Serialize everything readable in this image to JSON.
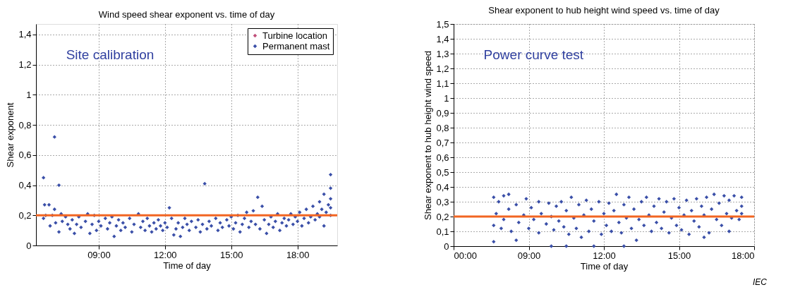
{
  "chart_data": [
    {
      "type": "scatter",
      "title": "Wind speed shear exponent vs. time of day",
      "xlabel": "Time of day",
      "ylabel": "Shear exponent",
      "xlim": [
        6.16,
        19.8
      ],
      "xticks": [
        {
          "value": 9,
          "label": "09:00"
        },
        {
          "value": 12,
          "label": "12:00"
        },
        {
          "value": 15,
          "label": "15:00"
        },
        {
          "value": 18,
          "label": "18:00"
        }
      ],
      "ylim": [
        0,
        1.47
      ],
      "yticks": [
        0,
        {
          "value": 0.2,
          "label": "0,2"
        },
        {
          "value": 0.4,
          "label": "0,4"
        },
        {
          "value": 0.6,
          "label": "0,6"
        },
        {
          "value": 0.8,
          "label": "0,8"
        },
        1,
        {
          "value": 1.2,
          "label": "1,2"
        },
        {
          "value": 1.4,
          "label": "1,4"
        }
      ],
      "grid": true,
      "legend": "top right",
      "marker": "diamond",
      "annotations": [
        "Site calibration"
      ],
      "ref_lines": [
        {
          "axis": "y",
          "value": 0.2,
          "label": null,
          "color": "#f26522"
        }
      ],
      "series": [
        {
          "name": "Turbine location",
          "color": "#c0507a"
        },
        {
          "name": "Permanent mast",
          "color": "#3a4fa8",
          "x": [
            6.5,
            6.5,
            6.55,
            6.6,
            6.75,
            6.8,
            6.9,
            7.0,
            7.0,
            7.05,
            7.2,
            7.2,
            7.3,
            7.35,
            7.5,
            7.6,
            7.7,
            7.8,
            7.9,
            8.0,
            8.1,
            8.2,
            8.4,
            8.5,
            8.6,
            8.7,
            8.8,
            8.9,
            9.0,
            9.1,
            9.3,
            9.4,
            9.5,
            9.6,
            9.7,
            9.8,
            9.9,
            10.0,
            10.1,
            10.2,
            10.4,
            10.5,
            10.6,
            10.8,
            10.9,
            11.0,
            11.1,
            11.2,
            11.3,
            11.4,
            11.5,
            11.6,
            11.7,
            11.8,
            11.9,
            12.0,
            12.1,
            12.2,
            12.3,
            12.4,
            12.5,
            12.6,
            12.7,
            12.8,
            12.9,
            13.0,
            13.1,
            13.2,
            13.4,
            13.5,
            13.6,
            13.7,
            13.8,
            13.9,
            14.0,
            14.1,
            14.3,
            14.4,
            14.5,
            14.6,
            14.8,
            14.9,
            15.0,
            15.1,
            15.2,
            15.3,
            15.4,
            15.5,
            15.6,
            15.7,
            15.8,
            15.9,
            16.0,
            16.1,
            16.2,
            16.3,
            16.4,
            16.5,
            16.6,
            16.7,
            16.8,
            16.9,
            17.0,
            17.1,
            17.2,
            17.3,
            17.4,
            17.5,
            17.6,
            17.7,
            17.8,
            17.9,
            18.0,
            18.1,
            18.2,
            18.3,
            18.4,
            18.5,
            18.6,
            18.7,
            18.8,
            18.9,
            19.0,
            19.0,
            19.1,
            19.2,
            19.2,
            19.3,
            19.4,
            19.5,
            19.5,
            19.5,
            19.5,
            19.5
          ],
          "values": [
            0.45,
            0.18,
            0.27,
            0.2,
            0.27,
            0.13,
            0.2,
            0.72,
            0.24,
            0.15,
            0.4,
            0.09,
            0.21,
            0.16,
            0.19,
            0.14,
            0.11,
            0.17,
            0.08,
            0.14,
            0.19,
            0.12,
            0.16,
            0.21,
            0.08,
            0.14,
            0.2,
            0.1,
            0.16,
            0.13,
            0.18,
            0.11,
            0.15,
            0.19,
            0.06,
            0.13,
            0.17,
            0.1,
            0.15,
            0.12,
            0.18,
            0.09,
            0.14,
            0.21,
            0.12,
            0.16,
            0.1,
            0.18,
            0.13,
            0.09,
            0.15,
            0.11,
            0.17,
            0.13,
            0.1,
            0.15,
            0.12,
            0.25,
            0.18,
            0.07,
            0.11,
            0.15,
            0.06,
            0.12,
            0.18,
            0.14,
            0.1,
            0.16,
            0.12,
            0.17,
            0.09,
            0.14,
            0.41,
            0.11,
            0.16,
            0.13,
            0.18,
            0.1,
            0.15,
            0.12,
            0.17,
            0.13,
            0.19,
            0.11,
            0.15,
            0.2,
            0.09,
            0.14,
            0.18,
            0.22,
            0.12,
            0.16,
            0.23,
            0.14,
            0.32,
            0.11,
            0.26,
            0.17,
            0.08,
            0.14,
            0.19,
            0.12,
            0.16,
            0.21,
            0.1,
            0.15,
            0.18,
            0.13,
            0.17,
            0.21,
            0.14,
            0.19,
            0.16,
            0.22,
            0.13,
            0.18,
            0.24,
            0.15,
            0.19,
            0.26,
            0.17,
            0.21,
            0.29,
            0.19,
            0.24,
            0.34,
            0.13,
            0.22,
            0.27,
            0.47,
            0.38,
            0.31,
            0.25,
            0.2
          ]
        }
      ]
    },
    {
      "type": "scatter",
      "title": "Shear exponent to hub height wind speed vs. time of day",
      "xlabel": "Time of day",
      "ylabel": "Shear exponent to hub height wind speed",
      "xlim": [
        6,
        18
      ],
      "xticks": [
        {
          "value": 6,
          "label": "00:00"
        },
        {
          "value": 9,
          "label": "09:00"
        },
        {
          "value": 12,
          "label": "12:00"
        },
        {
          "value": 15,
          "label": "15:00"
        },
        {
          "value": 18,
          "label": "18:00"
        }
      ],
      "ylim": [
        0,
        1.5
      ],
      "yticks": [
        0,
        {
          "value": 0.1,
          "label": "0,1"
        },
        {
          "value": 0.2,
          "label": "0,2"
        },
        {
          "value": 0.3,
          "label": "0,3"
        },
        {
          "value": 0.4,
          "label": "0,4"
        },
        {
          "value": 0.5,
          "label": "0,5"
        },
        {
          "value": 0.6,
          "label": "0,6"
        },
        {
          "value": 0.7,
          "label": "0,7"
        },
        {
          "value": 0.8,
          "label": "0,8"
        },
        {
          "value": 0.9,
          "label": "0,9"
        },
        1,
        {
          "value": 1.1,
          "label": "1,1"
        },
        {
          "value": 1.2,
          "label": "1,2"
        },
        {
          "value": 1.3,
          "label": "1,3"
        },
        {
          "value": 1.4,
          "label": "1,4"
        },
        {
          "value": 1.5,
          "label": "1,5"
        }
      ],
      "grid": true,
      "marker": "diamond",
      "annotations": [
        "Power curve test",
        "IEC"
      ],
      "ref_lines": [
        {
          "axis": "y",
          "value": 0.2,
          "label": null,
          "color": "#f26522"
        }
      ],
      "series": [
        {
          "color": "#3a4fa8",
          "x": [
            7.6,
            7.6,
            7.6,
            7.7,
            7.8,
            7.9,
            8.0,
            8.0,
            8.2,
            8.2,
            8.3,
            8.5,
            8.5,
            8.6,
            8.8,
            8.9,
            9.0,
            9.1,
            9.2,
            9.4,
            9.4,
            9.5,
            9.7,
            9.8,
            9.9,
            9.9,
            10.0,
            10.1,
            10.2,
            10.3,
            10.4,
            10.5,
            10.5,
            10.6,
            10.7,
            10.8,
            10.9,
            11.0,
            11.1,
            11.2,
            11.3,
            11.4,
            11.5,
            11.6,
            11.6,
            11.8,
            11.9,
            12.0,
            12.1,
            12.2,
            12.3,
            12.4,
            12.5,
            12.6,
            12.7,
            12.8,
            12.8,
            12.9,
            13.0,
            13.1,
            13.2,
            13.3,
            13.4,
            13.5,
            13.6,
            13.7,
            13.8,
            13.9,
            14.0,
            14.1,
            14.2,
            14.3,
            14.4,
            14.5,
            14.6,
            14.7,
            14.8,
            14.9,
            15.0,
            15.1,
            15.2,
            15.3,
            15.4,
            15.5,
            15.6,
            15.7,
            15.8,
            15.9,
            16.0,
            16.0,
            16.1,
            16.2,
            16.3,
            16.4,
            16.5,
            16.6,
            16.7,
            16.8,
            16.9,
            17.0,
            17.0,
            17.1,
            17.2,
            17.3,
            17.4,
            17.5,
            17.5,
            17.5
          ],
          "values": [
            0.33,
            0.03,
            0.14,
            0.22,
            0.3,
            0.12,
            0.34,
            0.18,
            0.35,
            0.25,
            0.1,
            0.04,
            0.28,
            0.16,
            0.21,
            0.32,
            0.12,
            0.26,
            0.18,
            0.3,
            0.09,
            0.22,
            0.15,
            0.29,
            0.0,
            0.2,
            0.11,
            0.27,
            0.17,
            0.3,
            0.13,
            0.0,
            0.24,
            0.08,
            0.33,
            0.19,
            0.12,
            0.28,
            0.06,
            0.21,
            0.31,
            0.1,
            0.25,
            0.0,
            0.17,
            0.3,
            0.08,
            0.22,
            0.14,
            0.29,
            0.1,
            0.24,
            0.35,
            0.16,
            0.09,
            0.0,
            0.28,
            0.19,
            0.33,
            0.12,
            0.25,
            0.04,
            0.18,
            0.3,
            0.14,
            0.33,
            0.21,
            0.1,
            0.27,
            0.16,
            0.32,
            0.12,
            0.23,
            0.3,
            0.09,
            0.19,
            0.32,
            0.14,
            0.26,
            0.11,
            0.21,
            0.31,
            0.08,
            0.24,
            0.17,
            0.32,
            0.13,
            0.27,
            0.06,
            0.21,
            0.33,
            0.09,
            0.25,
            0.35,
            0.18,
            0.29,
            0.14,
            0.34,
            0.22,
            0.1,
            0.31,
            0.19,
            0.34,
            0.24,
            0.18,
            0.33,
            0.27,
            0.22
          ]
        }
      ]
    }
  ]
}
